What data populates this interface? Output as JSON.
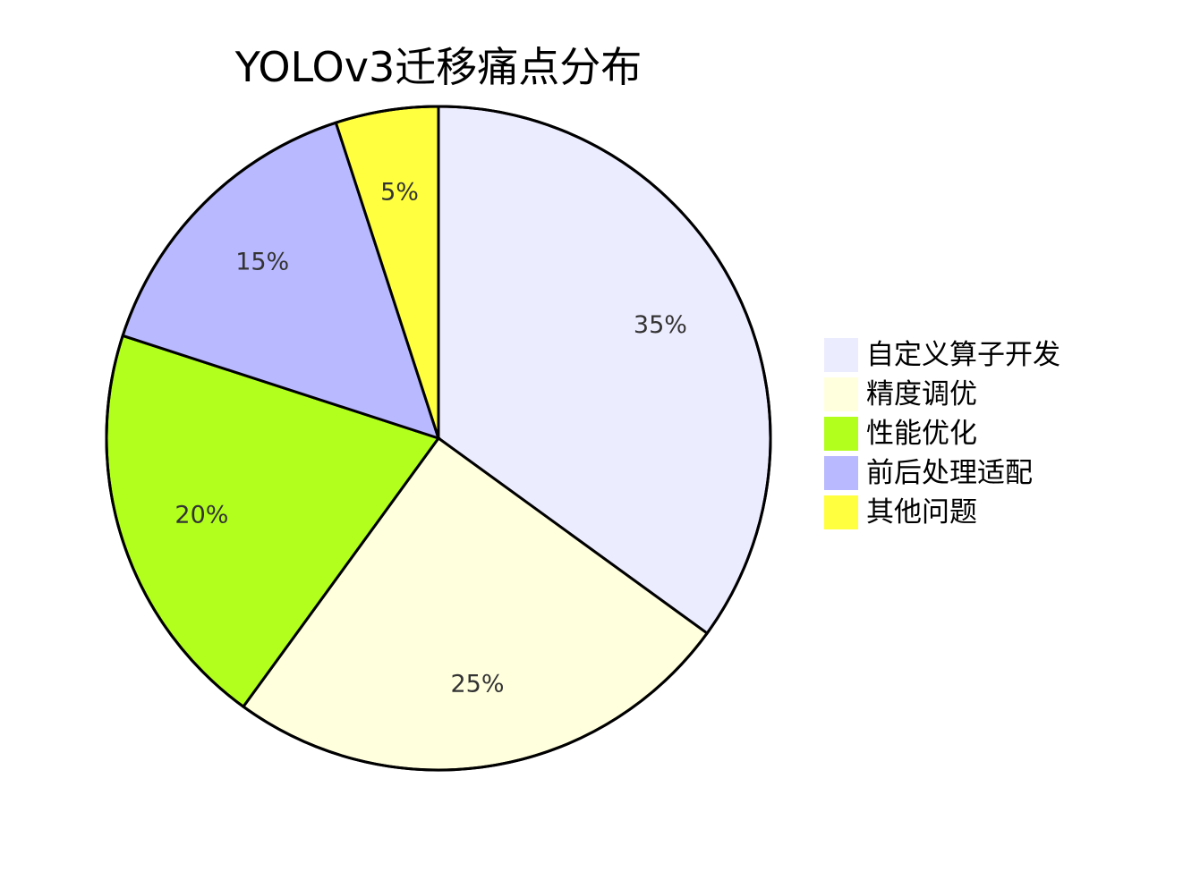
{
  "chart_data": {
    "type": "pie",
    "title": "YOLOv3迁移痛点分布",
    "categories": [
      "自定义算子开发",
      "精度调优",
      "性能优化",
      "前后处理适配",
      "其他问题"
    ],
    "values": [
      35,
      25,
      20,
      15,
      5
    ],
    "slice_labels": [
      "35%",
      "25%",
      "20%",
      "15%",
      "5%"
    ],
    "colors": [
      "#ececff",
      "#ffffde",
      "#b2ff1e",
      "#b9b9ff",
      "#ffff3f"
    ],
    "legend_position": "right",
    "start": "top",
    "direction": "clockwise"
  }
}
